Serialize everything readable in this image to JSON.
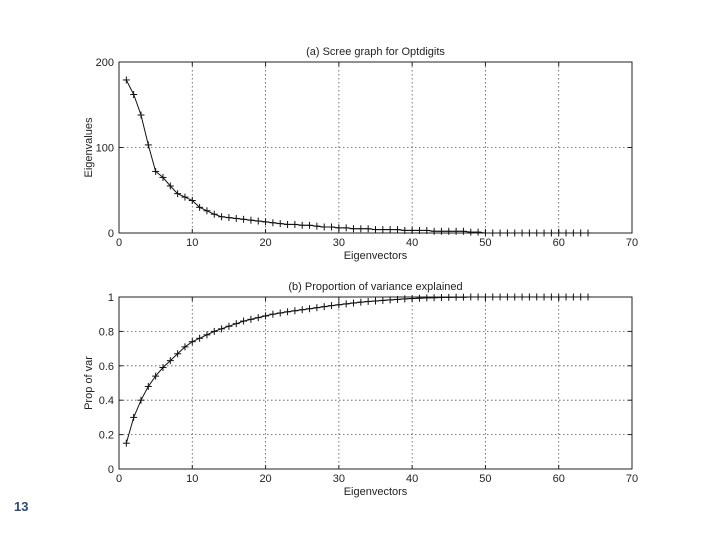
{
  "slide": {
    "number": "13"
  },
  "chart_data": [
    {
      "type": "line",
      "title": "(a) Scree graph for Optdigits",
      "xlabel": "Eigenvectors",
      "ylabel": "Eigenvalues",
      "xlim": [
        0,
        70
      ],
      "ylim": [
        0,
        200
      ],
      "xticks": [
        "0",
        "10",
        "20",
        "30",
        "40",
        "50",
        "60",
        "70"
      ],
      "yticks": [
        "0",
        "100",
        "200"
      ],
      "grid": true,
      "series": [
        {
          "x": [
            1,
            2,
            3,
            4,
            5,
            6,
            7,
            8,
            9,
            10,
            11,
            12,
            13,
            14,
            15,
            16,
            17,
            18,
            19,
            20,
            21,
            22,
            23,
            24,
            25,
            26,
            27,
            28,
            29,
            30,
            31,
            32,
            33,
            34,
            35,
            36,
            37,
            38,
            39,
            40,
            41,
            42,
            43,
            44,
            45,
            46,
            47,
            48,
            49,
            50,
            51,
            52,
            53,
            54,
            55,
            56,
            57,
            58,
            59,
            60,
            61,
            62,
            63,
            64
          ],
          "y": [
            179,
            162,
            138,
            103,
            72,
            65,
            55,
            46,
            42,
            38,
            30,
            26,
            22,
            19,
            18,
            17,
            16,
            15,
            14,
            13,
            12,
            11,
            10,
            10,
            9,
            9,
            8,
            7,
            7,
            6,
            6,
            5,
            5,
            5,
            4,
            4,
            4,
            4,
            3,
            3,
            3,
            3,
            2,
            2,
            2,
            2,
            2,
            1,
            1,
            0,
            0,
            0,
            0,
            0,
            0,
            0,
            0,
            0,
            0,
            0,
            0,
            0,
            0,
            0
          ]
        }
      ]
    },
    {
      "type": "line",
      "title": "(b) Proportion of variance explained",
      "xlabel": "Eigenvectors",
      "ylabel": "Prop of var",
      "xlim": [
        0,
        70
      ],
      "ylim": [
        0,
        1
      ],
      "xticks": [
        "0",
        "10",
        "20",
        "30",
        "40",
        "50",
        "60",
        "70"
      ],
      "yticks": [
        "0",
        "0.2",
        "0.4",
        "0.6",
        "0.8",
        "1"
      ],
      "grid": true,
      "series": [
        {
          "x": [
            1,
            2,
            3,
            4,
            5,
            6,
            7,
            8,
            9,
            10,
            11,
            12,
            13,
            14,
            15,
            16,
            17,
            18,
            19,
            20,
            21,
            22,
            23,
            24,
            25,
            26,
            27,
            28,
            29,
            30,
            31,
            32,
            33,
            34,
            35,
            36,
            37,
            38,
            39,
            40,
            41,
            42,
            43,
            44,
            45,
            46,
            47,
            48,
            49,
            50,
            51,
            52,
            53,
            54,
            55,
            56,
            57,
            58,
            59,
            60,
            61,
            62,
            63,
            64
          ],
          "y": [
            0.15,
            0.3,
            0.4,
            0.48,
            0.54,
            0.59,
            0.63,
            0.67,
            0.71,
            0.74,
            0.76,
            0.78,
            0.8,
            0.815,
            0.83,
            0.845,
            0.86,
            0.87,
            0.88,
            0.89,
            0.9,
            0.907,
            0.914,
            0.92,
            0.926,
            0.932,
            0.938,
            0.944,
            0.95,
            0.955,
            0.96,
            0.965,
            0.97,
            0.974,
            0.977,
            0.98,
            0.983,
            0.986,
            0.989,
            0.991,
            0.993,
            0.995,
            0.996,
            0.997,
            0.998,
            0.999,
            0.999,
            1,
            1,
            1,
            1,
            1,
            1,
            1,
            1,
            1,
            1,
            1,
            1,
            1,
            1,
            1,
            1,
            1
          ]
        }
      ]
    }
  ]
}
